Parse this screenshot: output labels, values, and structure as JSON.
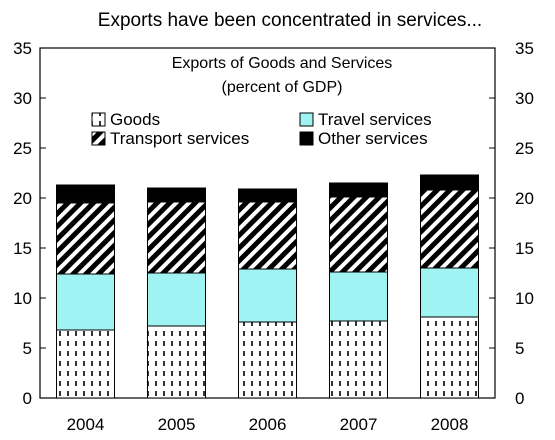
{
  "chart_data": {
    "type": "bar",
    "stacked": true,
    "title": "Exports have been concentrated in services...",
    "inner_title_line1": "Exports of Goods and Services",
    "inner_title_line2": "(percent of GDP)",
    "categories": [
      "2004",
      "2005",
      "2006",
      "2007",
      "2008"
    ],
    "ylim": [
      0,
      35
    ],
    "yticks": [
      0,
      5,
      10,
      15,
      20,
      25,
      30,
      35
    ],
    "legend_position": "top",
    "series": [
      {
        "name": "Goods",
        "values": [
          6.8,
          7.2,
          7.6,
          7.7,
          8.1
        ],
        "pattern": "dashed-vertical",
        "color": "#ffffff"
      },
      {
        "name": "Travel services",
        "values": [
          5.6,
          5.3,
          5.3,
          4.9,
          4.9
        ],
        "pattern": "solid",
        "color": "#9ff3f3"
      },
      {
        "name": "Transport services",
        "values": [
          7.1,
          7.1,
          6.7,
          7.5,
          7.8
        ],
        "pattern": "diagonal-hatch",
        "color": "#ffffff"
      },
      {
        "name": "Other services",
        "values": [
          1.8,
          1.4,
          1.3,
          1.4,
          1.5
        ],
        "pattern": "solid",
        "color": "#000000"
      }
    ]
  }
}
